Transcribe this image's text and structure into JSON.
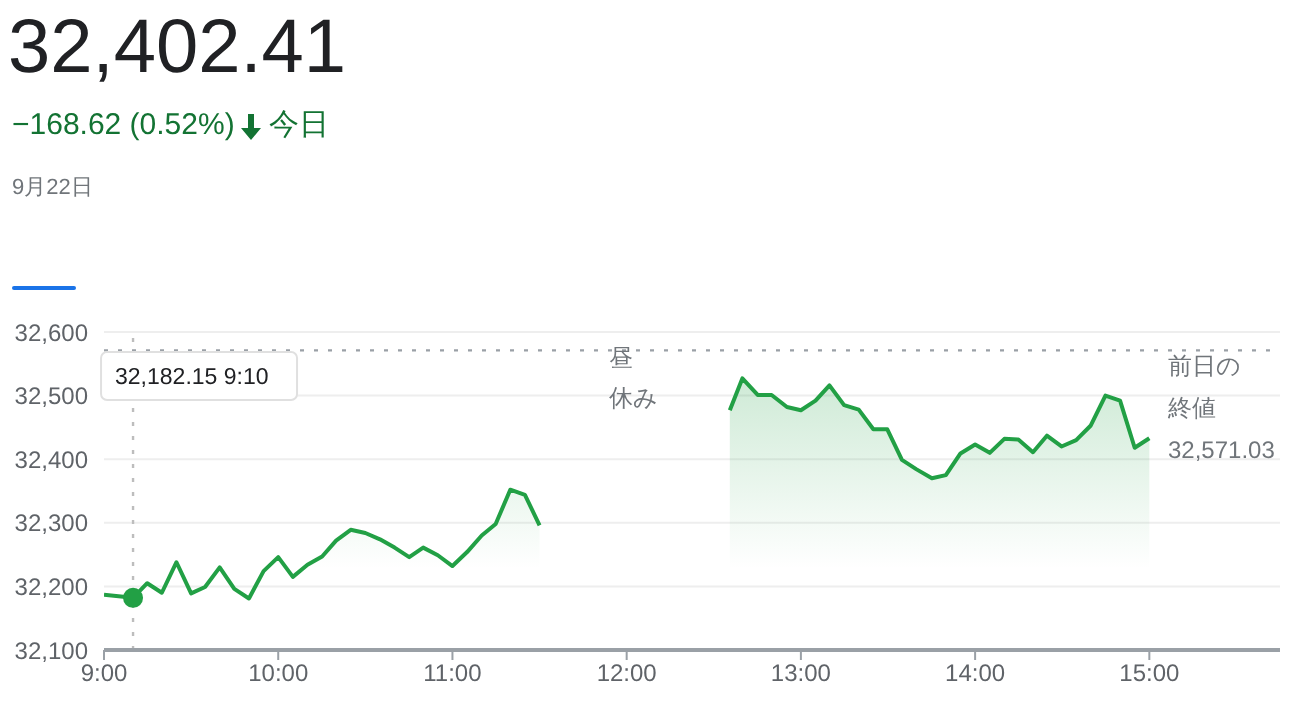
{
  "chart_data": {
    "type": "area",
    "title": "32,402.41",
    "subtitle": "−168.62 (0.52%)",
    "annotations": [
      "今日",
      "9月22日",
      "昼休み"
    ],
    "x": [
      9,
      9.1667,
      9.248,
      9.332,
      9.416,
      9.5,
      9.58,
      9.664,
      9.748,
      9.832,
      9.916,
      10,
      10.084,
      10.168,
      10.252,
      10.332,
      10.416,
      10.5,
      10.584,
      10.668,
      10.752,
      10.832,
      10.916,
      11,
      11.084,
      11.168,
      11.248,
      11.332,
      11.416,
      11.5,
      12,
      12.592,
      12.664,
      12.752,
      12.832,
      12.92,
      13,
      13.084,
      13.164,
      13.248,
      13.332,
      13.416,
      13.496,
      13.58,
      13.664,
      13.752,
      13.832,
      13.916,
      14,
      14.084,
      14.168,
      14.248,
      14.332,
      14.412,
      14.496,
      14.58,
      14.664,
      14.748,
      14.832,
      14.916,
      15
    ],
    "series": [
      {
        "color": "#22a045",
        "values": [
          32187,
          32182,
          32205,
          32190,
          32238,
          32189,
          32199,
          32230,
          32196,
          32181,
          32224,
          32246,
          32215,
          32234,
          32247,
          32272,
          32289,
          32284,
          32274,
          32261,
          32246,
          32261,
          32249,
          32232,
          32254,
          32280,
          32298,
          32352,
          32344,
          32296,
          null,
          32477,
          32527,
          32501,
          32501,
          32482,
          32477,
          32492,
          32516,
          32485,
          32478,
          32447,
          32447,
          32399,
          32384,
          32370,
          32375,
          32409,
          32423,
          32410,
          32432,
          32431,
          32411,
          32437,
          32420,
          32430,
          32453,
          32500,
          32492,
          32418,
          32433
        ]
      },
      {
        "type": "scatter",
        "marker": "circle",
        "color": "#22a045",
        "x": [
          9.1667
        ],
        "values": [
          32182
        ]
      }
    ],
    "xlim": [
      9,
      15.75
    ],
    "xticks": [
      {
        "value": 9,
        "label": "9:00"
      },
      {
        "value": 10,
        "label": "10:00"
      },
      {
        "value": 11,
        "label": "11:00"
      },
      {
        "value": 12,
        "label": "12:00"
      },
      {
        "value": 13,
        "label": "13:00"
      },
      {
        "value": 14,
        "label": "14:00"
      },
      {
        "value": 15,
        "label": "15:00"
      }
    ],
    "ylim": [
      32100,
      32600
    ],
    "yticks": [
      {
        "value": 32100,
        "label": "32,100"
      },
      {
        "value": 32200,
        "label": "32,200"
      },
      {
        "value": 32300,
        "label": "32,300"
      },
      {
        "value": 32400,
        "label": "32,400"
      },
      {
        "value": 32500,
        "label": "32,500"
      },
      {
        "value": 32600,
        "label": "32,600"
      }
    ],
    "ref_lines": [
      {
        "axis": "y",
        "value": 32571.03,
        "label": "前日の終値 32,571.03",
        "line_style": "dotted",
        "color": "#9aa0a6"
      },
      {
        "axis": "x",
        "value": 9.1667,
        "label": "32,182.15 9:10",
        "line_style": "dotted",
        "color": "#bdbdbd"
      }
    ],
    "grid": "y",
    "legend": false
  }
}
